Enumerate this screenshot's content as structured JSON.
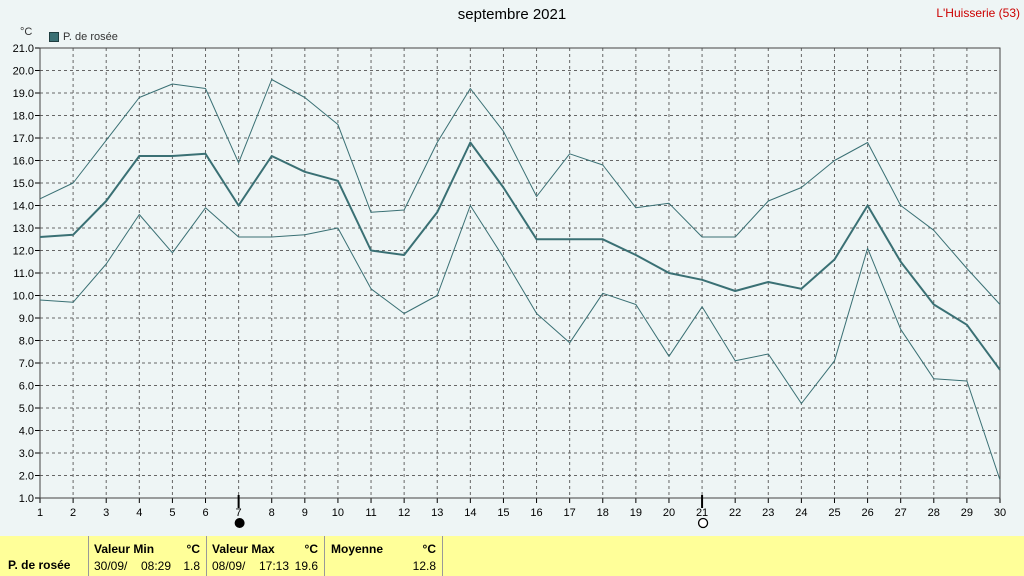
{
  "chart_data": {
    "type": "line",
    "title": "septembre 2021",
    "station": "L'Huisserie (53)",
    "yunit": "°C",
    "ylim": [
      1.0,
      21.0
    ],
    "yticks": [
      "1.0",
      "2.0",
      "3.0",
      "4.0",
      "5.0",
      "6.0",
      "7.0",
      "8.0",
      "9.0",
      "10.0",
      "11.0",
      "12.0",
      "13.0",
      "14.0",
      "15.0",
      "16.0",
      "17.0",
      "18.0",
      "19.0",
      "20.0",
      "21.0"
    ],
    "x": [
      1,
      2,
      3,
      4,
      5,
      6,
      7,
      8,
      9,
      10,
      11,
      12,
      13,
      14,
      15,
      16,
      17,
      18,
      19,
      20,
      21,
      22,
      23,
      24,
      25,
      26,
      27,
      28,
      29,
      30
    ],
    "legend": "P. de rosée",
    "series": [
      {
        "name": "P. de rosée",
        "role": "mean",
        "color": "#3a7074",
        "values": [
          12.6,
          12.7,
          14.2,
          16.2,
          16.2,
          16.3,
          14.0,
          16.2,
          15.5,
          15.1,
          12.0,
          11.8,
          13.7,
          16.8,
          14.8,
          12.5,
          12.5,
          12.5,
          11.8,
          11.0,
          10.7,
          10.2,
          10.6,
          10.3,
          11.6,
          14.0,
          11.5,
          9.6,
          8.7,
          6.7
        ]
      },
      {
        "name": "",
        "role": "max",
        "color": "#3a7074",
        "values": [
          14.3,
          15.0,
          16.9,
          18.8,
          19.4,
          19.2,
          15.9,
          19.6,
          18.8,
          17.6,
          13.7,
          13.8,
          16.8,
          19.2,
          17.3,
          14.4,
          16.3,
          15.8,
          13.9,
          14.1,
          12.6,
          12.6,
          14.2,
          14.8,
          16.0,
          16.8,
          14.0,
          12.9,
          11.2,
          9.6
        ]
      },
      {
        "name": "",
        "role": "min",
        "color": "#3a7074",
        "values": [
          9.8,
          9.7,
          11.4,
          13.6,
          11.9,
          13.9,
          12.6,
          12.6,
          12.7,
          13.0,
          10.3,
          9.2,
          10.0,
          14.0,
          11.7,
          9.2,
          7.9,
          10.1,
          9.6,
          7.3,
          9.5,
          7.1,
          7.4,
          5.2,
          7.1,
          12.1,
          8.5,
          6.3,
          6.2,
          1.8
        ]
      }
    ],
    "markers": [
      {
        "day": 7,
        "symbol": "new-moon"
      },
      {
        "day": 21,
        "symbol": "full-moon"
      }
    ],
    "grid": true,
    "legend_position": "top-left"
  },
  "stats": {
    "label": "P. de rosée",
    "min_header": "Valeur Min",
    "min_unit": "°C",
    "min_date": "30/09/",
    "min_time": "08:29",
    "min_value": "1.8",
    "max_header": "Valeur Max",
    "max_unit": "°C",
    "max_date": "08/09/",
    "max_time": "17:13",
    "max_value": "19.6",
    "avg_header": "Moyenne",
    "avg_unit": "°C",
    "avg_value": "12.8"
  }
}
